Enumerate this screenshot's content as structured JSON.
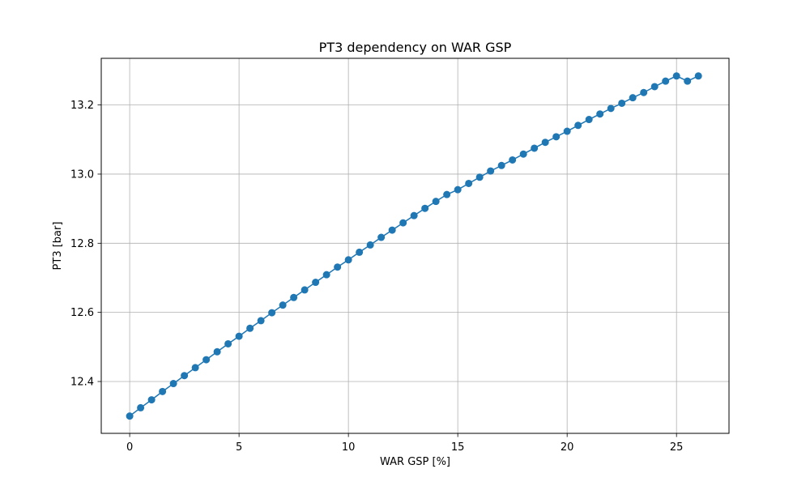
{
  "chart_data": {
    "type": "line",
    "title": "PT3 dependency on WAR GSP",
    "xlabel": "WAR GSP [%]",
    "ylabel": "PT3 [bar]",
    "xlim": [
      -1.3,
      27.4
    ],
    "ylim": [
      12.25,
      13.335
    ],
    "xticks": [
      0,
      5,
      10,
      15,
      20,
      25
    ],
    "yticks": [
      12.4,
      12.6,
      12.8,
      13.0,
      13.2
    ],
    "xtick_labels": [
      "0",
      "5",
      "10",
      "15",
      "20",
      "25"
    ],
    "ytick_labels": [
      "12.4",
      "12.6",
      "12.8",
      "13.0",
      "13.2"
    ],
    "grid": true,
    "legend": "none",
    "marker": "circle",
    "series": [
      {
        "color": "#1f77b4",
        "x": [
          0.0,
          0.5,
          1.0,
          1.5,
          2.0,
          2.5,
          3.0,
          3.5,
          4.0,
          4.5,
          5.0,
          5.5,
          6.0,
          6.5,
          7.0,
          7.5,
          8.0,
          8.5,
          9.0,
          9.5,
          10.0,
          10.5,
          11.0,
          11.5,
          12.0,
          12.5,
          13.0,
          13.5,
          14.0,
          14.5,
          15.0,
          15.5,
          16.0,
          16.5,
          17.0,
          17.5,
          18.0,
          18.5,
          19.0,
          19.5,
          20.0,
          20.5,
          21.0,
          21.5,
          22.0,
          22.5,
          23.0,
          23.5,
          24.0,
          24.5,
          25.0,
          25.5,
          26.0
        ],
        "y": [
          12.3,
          12.324,
          12.347,
          12.371,
          12.394,
          12.417,
          12.44,
          12.463,
          12.486,
          12.509,
          12.531,
          12.554,
          12.576,
          12.599,
          12.621,
          12.643,
          12.665,
          12.687,
          12.709,
          12.731,
          12.752,
          12.774,
          12.795,
          12.817,
          12.838,
          12.859,
          12.88,
          12.901,
          12.921,
          12.941,
          12.955,
          12.973,
          12.991,
          13.009,
          13.025,
          13.041,
          13.058,
          13.075,
          13.092,
          13.108,
          13.124,
          13.141,
          13.158,
          13.174,
          13.19,
          13.205,
          13.221,
          13.236,
          13.253,
          13.269,
          13.284,
          13.269,
          13.284
        ]
      }
    ]
  }
}
